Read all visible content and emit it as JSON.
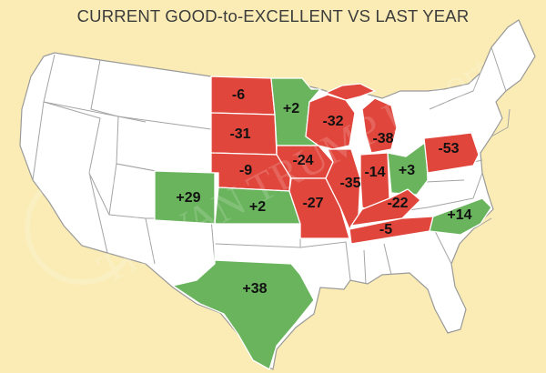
{
  "title": "CURRENT GOOD-to-EXCELLENT VS LAST YEAR",
  "watermark": "The VAN TRUMP Report",
  "colors": {
    "background": "#faecb4",
    "land": "#ffffff",
    "border": "#9a9a9a",
    "worse": "#e0463c",
    "better": "#6ab45e"
  },
  "states": [
    {
      "state": "North Dakota",
      "label": "-6",
      "change": -6
    },
    {
      "state": "South Dakota",
      "label": "-31",
      "change": -31
    },
    {
      "state": "Nebraska",
      "label": "-9",
      "change": -9
    },
    {
      "state": "Kansas",
      "label": "+2",
      "change": 2
    },
    {
      "state": "Colorado",
      "label": "+29",
      "change": 29
    },
    {
      "state": "Texas",
      "label": "+38",
      "change": 38
    },
    {
      "state": "Minnesota",
      "label": "+2",
      "change": 2
    },
    {
      "state": "Iowa",
      "label": "-24",
      "change": -24
    },
    {
      "state": "Missouri",
      "label": "-27",
      "change": -27
    },
    {
      "state": "Wisconsin",
      "label": "-32",
      "change": -32
    },
    {
      "state": "Illinois",
      "label": "-35",
      "change": -35
    },
    {
      "state": "Michigan",
      "label": "-38",
      "change": -38
    },
    {
      "state": "Indiana",
      "label": "-14",
      "change": -14
    },
    {
      "state": "Ohio",
      "label": "+3",
      "change": 3
    },
    {
      "state": "Kentucky",
      "label": "-22",
      "change": -22
    },
    {
      "state": "Tennessee",
      "label": "-5",
      "change": -5
    },
    {
      "state": "Pennsylvania",
      "label": "-53",
      "change": -53
    },
    {
      "state": "North Carolina",
      "label": "+14",
      "change": 14
    }
  ]
}
